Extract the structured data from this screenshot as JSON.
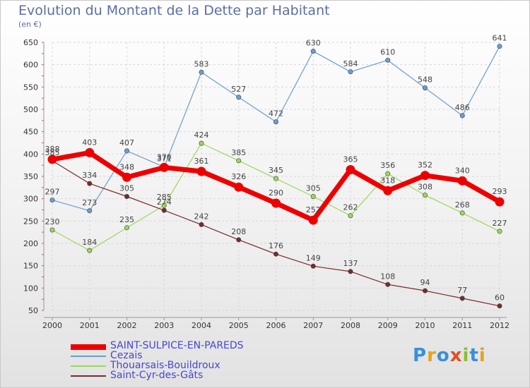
{
  "chart_data": {
    "type": "line",
    "title": "Evolution du Montant de la Dette par Habitant",
    "subtitle": "(en €)",
    "categories": [
      "2000",
      "2001",
      "2002",
      "2003",
      "2004",
      "2005",
      "2006",
      "2007",
      "2008",
      "2009",
      "2010",
      "2011",
      "2012"
    ],
    "ylim": [
      50,
      650
    ],
    "yticks": [
      50,
      100,
      150,
      200,
      250,
      300,
      350,
      400,
      450,
      500,
      550,
      600,
      650
    ],
    "grid": "horizontal dashed",
    "legend_position": "bottom-left",
    "series": [
      {
        "name": "SAINT-SULPICE-EN-PAREDS",
        "color": "#ee0000",
        "values": [
          388,
          403,
          348,
          370,
          361,
          326,
          290,
          252,
          365,
          318,
          352,
          340,
          293
        ]
      },
      {
        "name": "Cezais",
        "color": "#6a9ed0",
        "values": [
          297,
          273,
          407,
          371,
          583,
          527,
          472,
          630,
          584,
          610,
          548,
          486,
          641
        ]
      },
      {
        "name": "Thouarsais-Bouildroux",
        "color": "#9ad85a",
        "values": [
          230,
          184,
          235,
          285,
          424,
          385,
          345,
          305,
          262,
          356,
          308,
          268,
          227
        ]
      },
      {
        "name": "Saint-Cyr-des-Gâts",
        "color": "#7a2a2a",
        "values": [
          385,
          334,
          305,
          274,
          242,
          208,
          176,
          149,
          137,
          108,
          94,
          77,
          60
        ]
      }
    ]
  },
  "logo": {
    "text": "Proxiti",
    "colors": [
      "#3a8fd8",
      "#e8a020",
      "#3a8fd8",
      "#e05020",
      "#8ac030",
      "#3a8fd8",
      "#e8a020"
    ]
  }
}
